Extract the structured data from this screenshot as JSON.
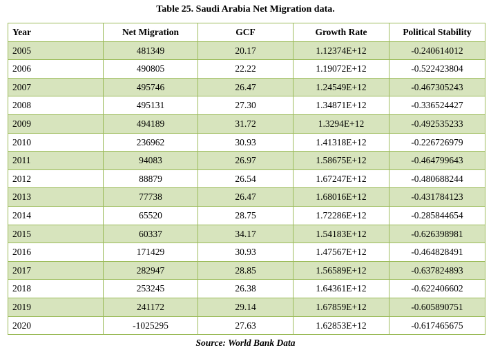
{
  "caption": "Table 25. Saudi Arabia Net Migration data.",
  "source": "Source: World Bank Data",
  "columns": [
    "Year",
    "Net Migration",
    "GCF",
    "Growth Rate",
    "Political Stability"
  ],
  "rows": [
    [
      "2005",
      "481349",
      "20.17",
      "1.12374E+12",
      "-0.240614012"
    ],
    [
      "2006",
      "490805",
      "22.22",
      "1.19072E+12",
      "-0.522423804"
    ],
    [
      "2007",
      "495746",
      "26.47",
      "1.24549E+12",
      "-0.467305243"
    ],
    [
      "2008",
      "495131",
      "27.30",
      "1.34871E+12",
      "-0.336524427"
    ],
    [
      "2009",
      "494189",
      "31.72",
      "1.3294E+12",
      "-0.492535233"
    ],
    [
      "2010",
      "236962",
      "30.93",
      "1.41318E+12",
      "-0.226726979"
    ],
    [
      "2011",
      "94083",
      "26.97",
      "1.58675E+12",
      "-0.464799643"
    ],
    [
      "2012",
      "88879",
      "26.54",
      "1.67247E+12",
      "-0.480688244"
    ],
    [
      "2013",
      "77738",
      "26.47",
      "1.68016E+12",
      "-0.431784123"
    ],
    [
      "2014",
      "65520",
      "28.75",
      "1.72286E+12",
      "-0.285844654"
    ],
    [
      "2015",
      "60337",
      "34.17",
      "1.54183E+12",
      "-0.626398981"
    ],
    [
      "2016",
      "171429",
      "30.93",
      "1.47567E+12",
      "-0.464828491"
    ],
    [
      "2017",
      "282947",
      "28.85",
      "1.56589E+12",
      "-0.637824893"
    ],
    [
      "2018",
      "253245",
      "26.38",
      "1.64361E+12",
      "-0.622406602"
    ],
    [
      "2019",
      "241172",
      "29.14",
      "1.67859E+12",
      "-0.605890751"
    ],
    [
      "2020",
      "-1025295",
      "27.63",
      "1.62853E+12",
      "-0.617465675"
    ]
  ]
}
